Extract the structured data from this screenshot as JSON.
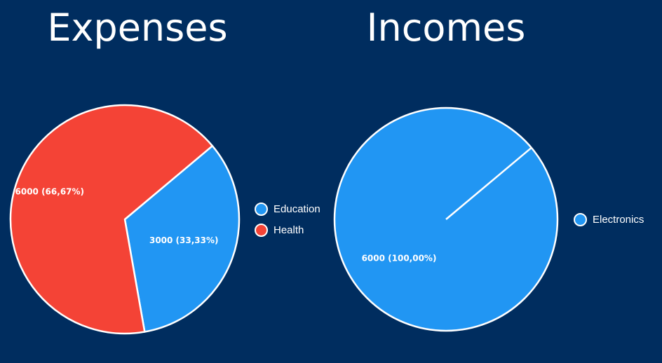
{
  "colors": {
    "background": "#002d5f",
    "slice_border": "#ffffff"
  },
  "chart_data": [
    {
      "type": "pie",
      "title": "Expenses",
      "legend": "right",
      "start_angle_deg": 40,
      "slices": [
        {
          "name": "Education",
          "value": 3000,
          "label": "3000 (33,33%)",
          "color": "#2196f3"
        },
        {
          "name": "Health",
          "value": 6000,
          "label": "6000 (66,67%)",
          "color": "#f44336"
        }
      ]
    },
    {
      "type": "pie",
      "title": "Incomes",
      "legend": "right",
      "start_angle_deg": 40,
      "slices": [
        {
          "name": "Electronics",
          "value": 6000,
          "label": "6000 (100,00%)",
          "color": "#2196f3"
        }
      ]
    }
  ]
}
